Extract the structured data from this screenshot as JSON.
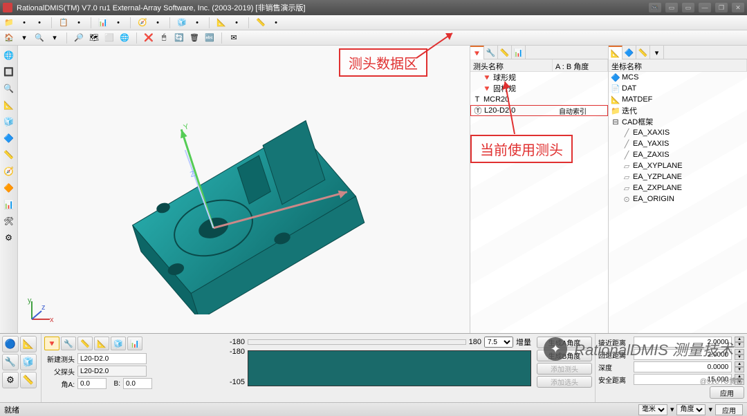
{
  "title": "RationalDMIS(TM) V7.0 ru1    External-Array Software, Inc. (2003-2019) [非销售演示版]",
  "colors": {
    "accent_teal": "#208080",
    "model_teal": "#1a9999",
    "model_dark": "#0d6666",
    "red": "#e03030",
    "titlebar_bg": "#555555"
  },
  "top_toolbar1": [
    "📁",
    "•",
    "•",
    "│",
    "📋",
    "•",
    "│",
    "📊",
    "•",
    "│",
    "🧭",
    "•",
    "│",
    "🧊",
    "•",
    "│",
    "📐",
    "•",
    "│",
    "📏",
    "•"
  ],
  "top_toolbar2": [
    "🏠",
    "▾",
    "🔍",
    "▾",
    "│",
    "🔎",
    "🗺",
    "⬜",
    "🌐",
    "│",
    "❌",
    "🖱",
    "🔄",
    "🗑",
    "🔤",
    "│",
    "✉"
  ],
  "left_tools": [
    "🌐",
    "🔲",
    "🔍",
    "📐",
    "🧊",
    "🔷",
    "📏",
    "🧭",
    "🔶",
    "📊",
    "🛠",
    "⚙"
  ],
  "probe_panel": {
    "tabs": [
      "🔻",
      "🔧",
      "📏",
      "📊"
    ],
    "header_col1": "测头名称",
    "header_col2": "A : B 角度",
    "items": [
      {
        "icon": "🔻",
        "label": "球形规",
        "indent": 1
      },
      {
        "icon": "🔻",
        "label": "固杆规",
        "indent": 1
      },
      {
        "icon": "⊞",
        "label": "MCR20",
        "indent": 0,
        "prefix": "T"
      },
      {
        "icon": "⊟",
        "label": "L20-D2.0",
        "indent": 0,
        "col2": "自动索引",
        "selected": true,
        "prefix": "Ⓣ"
      }
    ]
  },
  "coord_panel": {
    "tabs": [
      "📐",
      "🔷",
      "📏",
      "▾"
    ],
    "header": "坐标名称",
    "items": [
      {
        "icon": "🔷",
        "label": "MCS",
        "color": "#3a7ab8"
      },
      {
        "icon": "📄",
        "label": "DAT",
        "color": "#3a7ab8"
      },
      {
        "icon": "📐",
        "label": "MATDEF",
        "color": "#3a7ab8"
      },
      {
        "icon": "📁",
        "label": "迭代",
        "color": "#c89040"
      },
      {
        "icon": "⊟",
        "label": "CAD框架",
        "color": "#333",
        "expandable": true
      },
      {
        "icon": "╱",
        "label": "EA_XAXIS",
        "indent": 1,
        "color": "#888"
      },
      {
        "icon": "╱",
        "label": "EA_YAXIS",
        "indent": 1,
        "color": "#888"
      },
      {
        "icon": "╱",
        "label": "EA_ZAXIS",
        "indent": 1,
        "color": "#888"
      },
      {
        "icon": "▱",
        "label": "EA_XYPLANE",
        "indent": 1,
        "color": "#888"
      },
      {
        "icon": "▱",
        "label": "EA_YZPLANE",
        "indent": 1,
        "color": "#888"
      },
      {
        "icon": "▱",
        "label": "EA_ZXPLANE",
        "indent": 1,
        "color": "#888"
      },
      {
        "icon": "⊙",
        "label": "EA_ORIGIN",
        "indent": 1,
        "color": "#888"
      }
    ]
  },
  "bottom": {
    "left_icons": [
      "🔵",
      "📐",
      "🔧",
      "🧊",
      "⚙",
      "📏"
    ],
    "probe_tabs": [
      "🔻",
      "🔧",
      "📏",
      "📐",
      "🧊",
      "📊"
    ],
    "new_probe_label": "新建测头",
    "new_probe_value": "L20-D2.0",
    "parent_probe_label": "父探头",
    "parent_probe_value": "L20-D2.0",
    "angle_a_label": "角A:",
    "angle_a_value": "0.0",
    "angle_b_label": "B:",
    "angle_b_value": "0.0",
    "scale_min": "-180",
    "scale_max": "180",
    "scale_step": "7.5",
    "scale_step_label": "增量",
    "scale_low": "-105",
    "btn_gen_a": "生成A角度",
    "btn_gen_b": "生成B角度",
    "btn_add_probe": "添加测头",
    "btn_add_sel": "添加选头",
    "right": {
      "approach_label": "接近距离",
      "approach_value": "2.0000",
      "retract_label": "回退距离",
      "retract_value": "2.0000",
      "depth_label": "深度",
      "depth_value": "0.0000",
      "safedist_label": "安全距离",
      "safedist_value": "15.000",
      "apply": "应用"
    }
  },
  "status": {
    "left": "就绪",
    "unit_options": [
      "毫米"
    ],
    "angle_options": [
      "角度"
    ],
    "apply": "应用"
  },
  "annotations": {
    "box1": "测头数据区",
    "box2": "当前使用测头"
  },
  "overlay": {
    "text": "RationalDMIS 测量技术",
    "corner": "@51CTO博客"
  }
}
